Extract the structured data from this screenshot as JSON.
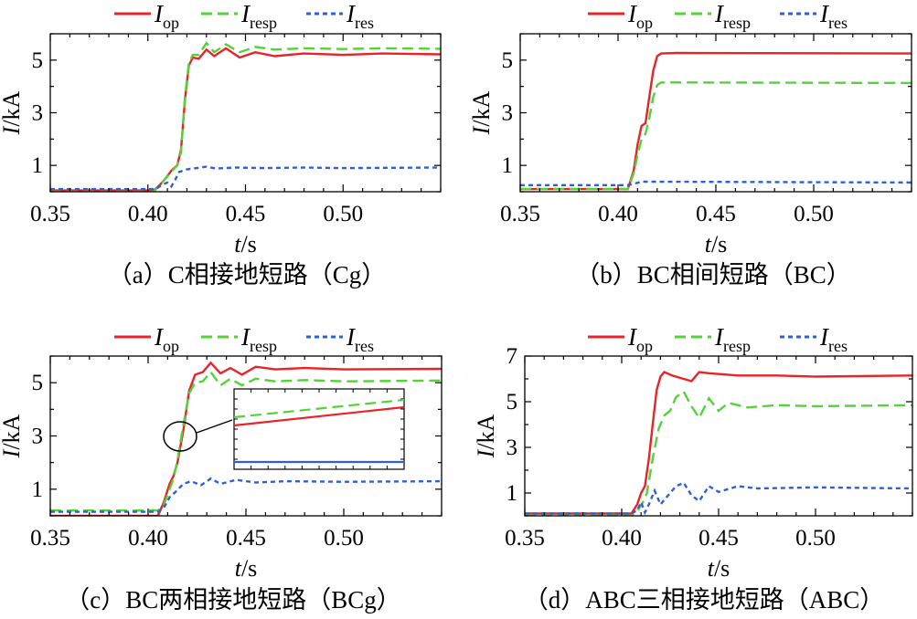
{
  "chart_data": [
    {
      "id": "a",
      "type": "line",
      "caption": "（a）C相接地短路（Cg）",
      "xlabel": {
        "var": "t",
        "unit": "/s"
      },
      "ylabel": {
        "var": "I",
        "unit": "/kA"
      },
      "xlim": [
        0.35,
        0.55
      ],
      "ylim": [
        0,
        6
      ],
      "xticks": [
        0.35,
        0.4,
        0.45,
        0.5
      ],
      "xtick_labels": [
        "0.35",
        "0.40",
        "0.45",
        "0.50"
      ],
      "yticks": [
        1,
        3,
        5
      ],
      "ytick_labels": [
        "1",
        "3",
        "5"
      ],
      "series": [
        {
          "name": "Iop",
          "points": [
            [
              0.35,
              0.05
            ],
            [
              0.403,
              0.05
            ],
            [
              0.406,
              0.25
            ],
            [
              0.409,
              0.5
            ],
            [
              0.412,
              0.8
            ],
            [
              0.415,
              1.0
            ],
            [
              0.417,
              1.6
            ],
            [
              0.419,
              3.5
            ],
            [
              0.421,
              4.8
            ],
            [
              0.423,
              5.1
            ],
            [
              0.426,
              5.05
            ],
            [
              0.43,
              5.4
            ],
            [
              0.434,
              5.15
            ],
            [
              0.44,
              5.45
            ],
            [
              0.447,
              5.1
            ],
            [
              0.455,
              5.3
            ],
            [
              0.465,
              5.15
            ],
            [
              0.48,
              5.25
            ],
            [
              0.5,
              5.2
            ],
            [
              0.52,
              5.25
            ],
            [
              0.55,
              5.22
            ]
          ]
        },
        {
          "name": "Iresp",
          "points": [
            [
              0.35,
              0.0
            ],
            [
              0.403,
              0.0
            ],
            [
              0.406,
              0.25
            ],
            [
              0.409,
              0.5
            ],
            [
              0.412,
              0.75
            ],
            [
              0.415,
              1.0
            ],
            [
              0.417,
              1.5
            ],
            [
              0.419,
              3.6
            ],
            [
              0.421,
              4.9
            ],
            [
              0.423,
              5.2
            ],
            [
              0.426,
              5.2
            ],
            [
              0.43,
              5.65
            ],
            [
              0.434,
              5.3
            ],
            [
              0.44,
              5.6
            ],
            [
              0.447,
              5.3
            ],
            [
              0.455,
              5.5
            ],
            [
              0.465,
              5.4
            ],
            [
              0.48,
              5.45
            ],
            [
              0.5,
              5.42
            ],
            [
              0.52,
              5.45
            ],
            [
              0.55,
              5.43
            ]
          ]
        },
        {
          "name": "Ires",
          "points": [
            [
              0.35,
              0.1
            ],
            [
              0.404,
              0.1
            ],
            [
              0.407,
              0.25
            ],
            [
              0.41,
              0.35
            ],
            [
              0.412,
              0.2
            ],
            [
              0.414,
              0.45
            ],
            [
              0.416,
              0.75
            ],
            [
              0.42,
              0.85
            ],
            [
              0.425,
              0.9
            ],
            [
              0.43,
              0.95
            ],
            [
              0.435,
              0.88
            ],
            [
              0.445,
              0.92
            ],
            [
              0.46,
              0.9
            ],
            [
              0.48,
              0.92
            ],
            [
              0.5,
              0.9
            ],
            [
              0.55,
              0.92
            ]
          ]
        }
      ]
    },
    {
      "id": "b",
      "type": "line",
      "caption": "（b）BC相间短路（BC）",
      "xlabel": {
        "var": "t",
        "unit": "/s"
      },
      "ylabel": {
        "var": "I",
        "unit": "/kA"
      },
      "xlim": [
        0.35,
        0.55
      ],
      "ylim": [
        0,
        6
      ],
      "xticks": [
        0.35,
        0.4,
        0.45,
        0.5
      ],
      "xtick_labels": [
        "0.35",
        "0.40",
        "0.45",
        "0.50"
      ],
      "yticks": [
        1,
        3,
        5
      ],
      "ytick_labels": [
        "1",
        "3",
        "5"
      ],
      "series": [
        {
          "name": "Iop",
          "points": [
            [
              0.35,
              0.1
            ],
            [
              0.405,
              0.1
            ],
            [
              0.408,
              0.8
            ],
            [
              0.41,
              1.8
            ],
            [
              0.412,
              2.5
            ],
            [
              0.414,
              2.6
            ],
            [
              0.416,
              3.6
            ],
            [
              0.418,
              4.6
            ],
            [
              0.42,
              5.15
            ],
            [
              0.422,
              5.25
            ],
            [
              0.43,
              5.27
            ],
            [
              0.55,
              5.25
            ]
          ]
        },
        {
          "name": "Iresp",
          "points": [
            [
              0.35,
              0.1
            ],
            [
              0.405,
              0.1
            ],
            [
              0.408,
              0.7
            ],
            [
              0.41,
              1.4
            ],
            [
              0.412,
              2.0
            ],
            [
              0.414,
              2.2
            ],
            [
              0.416,
              2.8
            ],
            [
              0.418,
              3.6
            ],
            [
              0.42,
              4.05
            ],
            [
              0.422,
              4.15
            ],
            [
              0.43,
              4.15
            ],
            [
              0.55,
              4.13
            ]
          ]
        },
        {
          "name": "Ires",
          "points": [
            [
              0.35,
              0.25
            ],
            [
              0.405,
              0.25
            ],
            [
              0.408,
              0.3
            ],
            [
              0.412,
              0.38
            ],
            [
              0.42,
              0.38
            ],
            [
              0.55,
              0.35
            ]
          ]
        }
      ]
    },
    {
      "id": "c",
      "type": "line",
      "caption": "（c）BC两相接地短路（BCg）",
      "xlabel": {
        "var": "t",
        "unit": "/s"
      },
      "ylabel": {
        "var": "I",
        "unit": "/kA"
      },
      "xlim": [
        0.35,
        0.55
      ],
      "ylim": [
        0,
        6
      ],
      "xticks": [
        0.35,
        0.4,
        0.45,
        0.5
      ],
      "xtick_labels": [
        "0.35",
        "0.40",
        "0.45",
        "0.50"
      ],
      "yticks": [
        1,
        3,
        5
      ],
      "ytick_labels": [
        "1",
        "3",
        "5"
      ],
      "inset": true,
      "series": [
        {
          "name": "Iop",
          "points": [
            [
              0.35,
              0.0
            ],
            [
              0.405,
              0.0
            ],
            [
              0.408,
              0.5
            ],
            [
              0.411,
              1.2
            ],
            [
              0.413,
              1.5
            ],
            [
              0.415,
              2.0
            ],
            [
              0.418,
              3.2
            ],
            [
              0.421,
              4.7
            ],
            [
              0.424,
              5.3
            ],
            [
              0.428,
              5.4
            ],
            [
              0.432,
              5.75
            ],
            [
              0.437,
              5.35
            ],
            [
              0.442,
              5.55
            ],
            [
              0.448,
              5.3
            ],
            [
              0.455,
              5.6
            ],
            [
              0.465,
              5.5
            ],
            [
              0.48,
              5.55
            ],
            [
              0.5,
              5.5
            ],
            [
              0.55,
              5.52
            ]
          ]
        },
        {
          "name": "Iresp",
          "points": [
            [
              0.35,
              0.2
            ],
            [
              0.405,
              0.2
            ],
            [
              0.408,
              0.4
            ],
            [
              0.411,
              1.0
            ],
            [
              0.413,
              1.4
            ],
            [
              0.415,
              2.1
            ],
            [
              0.418,
              3.4
            ],
            [
              0.421,
              4.6
            ],
            [
              0.424,
              5.0
            ],
            [
              0.428,
              5.05
            ],
            [
              0.432,
              5.4
            ],
            [
              0.437,
              4.9
            ],
            [
              0.442,
              5.15
            ],
            [
              0.448,
              4.9
            ],
            [
              0.455,
              5.15
            ],
            [
              0.465,
              5.05
            ],
            [
              0.48,
              5.1
            ],
            [
              0.5,
              5.05
            ],
            [
              0.55,
              5.08
            ]
          ]
        },
        {
          "name": "Ires",
          "points": [
            [
              0.35,
              0.15
            ],
            [
              0.405,
              0.15
            ],
            [
              0.408,
              0.3
            ],
            [
              0.411,
              0.7
            ],
            [
              0.414,
              0.9
            ],
            [
              0.418,
              1.2
            ],
            [
              0.422,
              1.3
            ],
            [
              0.427,
              1.15
            ],
            [
              0.432,
              1.4
            ],
            [
              0.437,
              1.2
            ],
            [
              0.445,
              1.35
            ],
            [
              0.455,
              1.25
            ],
            [
              0.47,
              1.3
            ],
            [
              0.5,
              1.28
            ],
            [
              0.55,
              1.3
            ]
          ]
        }
      ]
    },
    {
      "id": "d",
      "type": "line",
      "caption": "（d）ABC三相接地短路（ABC）",
      "xlabel": {
        "var": "t",
        "unit": "/s"
      },
      "ylabel": {
        "var": "I",
        "unit": "/kA"
      },
      "xlim": [
        0.35,
        0.55
      ],
      "ylim": [
        0,
        7
      ],
      "xticks": [
        0.35,
        0.4,
        0.45,
        0.5
      ],
      "xtick_labels": [
        "0.35",
        "0.40",
        "0.45",
        "0.50"
      ],
      "yticks": [
        1,
        3,
        5,
        7
      ],
      "ytick_labels": [
        "1",
        "3",
        "5",
        "7"
      ],
      "series": [
        {
          "name": "Iop",
          "points": [
            [
              0.35,
              0.1
            ],
            [
              0.405,
              0.1
            ],
            [
              0.408,
              0.5
            ],
            [
              0.41,
              1.0
            ],
            [
              0.412,
              1.3
            ],
            [
              0.414,
              2.5
            ],
            [
              0.416,
              4.0
            ],
            [
              0.418,
              5.5
            ],
            [
              0.42,
              6.1
            ],
            [
              0.422,
              6.3
            ],
            [
              0.426,
              6.15
            ],
            [
              0.432,
              6.0
            ],
            [
              0.436,
              5.9
            ],
            [
              0.44,
              6.3
            ],
            [
              0.445,
              6.25
            ],
            [
              0.46,
              6.15
            ],
            [
              0.48,
              6.15
            ],
            [
              0.5,
              6.1
            ],
            [
              0.55,
              6.15
            ]
          ]
        },
        {
          "name": "Iresp",
          "points": [
            [
              0.35,
              0.0
            ],
            [
              0.405,
              0.0
            ],
            [
              0.408,
              0.2
            ],
            [
              0.411,
              0.6
            ],
            [
              0.413,
              1.0
            ],
            [
              0.416,
              2.5
            ],
            [
              0.419,
              3.8
            ],
            [
              0.422,
              4.4
            ],
            [
              0.425,
              4.6
            ],
            [
              0.428,
              5.2
            ],
            [
              0.432,
              5.45
            ],
            [
              0.436,
              4.8
            ],
            [
              0.44,
              4.3
            ],
            [
              0.445,
              5.15
            ],
            [
              0.45,
              4.6
            ],
            [
              0.455,
              4.95
            ],
            [
              0.465,
              4.75
            ],
            [
              0.48,
              4.85
            ],
            [
              0.5,
              4.8
            ],
            [
              0.55,
              4.85
            ]
          ]
        },
        {
          "name": "Ires",
          "points": [
            [
              0.35,
              0.1
            ],
            [
              0.405,
              0.1
            ],
            [
              0.408,
              0.25
            ],
            [
              0.41,
              0.6
            ],
            [
              0.412,
              0.15
            ],
            [
              0.414,
              0.5
            ],
            [
              0.417,
              1.1
            ],
            [
              0.42,
              0.5
            ],
            [
              0.424,
              0.9
            ],
            [
              0.428,
              1.3
            ],
            [
              0.432,
              1.45
            ],
            [
              0.436,
              0.9
            ],
            [
              0.44,
              0.65
            ],
            [
              0.445,
              1.3
            ],
            [
              0.45,
              1.05
            ],
            [
              0.46,
              1.3
            ],
            [
              0.47,
              1.2
            ],
            [
              0.5,
              1.25
            ],
            [
              0.55,
              1.2
            ]
          ]
        }
      ]
    }
  ],
  "legend": [
    {
      "name": "Iop",
      "main": "I",
      "sub": "op",
      "color": "#e8232a",
      "dash": "solid"
    },
    {
      "name": "Iresp",
      "main": "I",
      "sub": "resp",
      "color": "#54d338",
      "dash": "12 6"
    },
    {
      "name": "Ires",
      "main": "I",
      "sub": "res",
      "color": "#2f5fd8",
      "dash": "5 4"
    }
  ]
}
